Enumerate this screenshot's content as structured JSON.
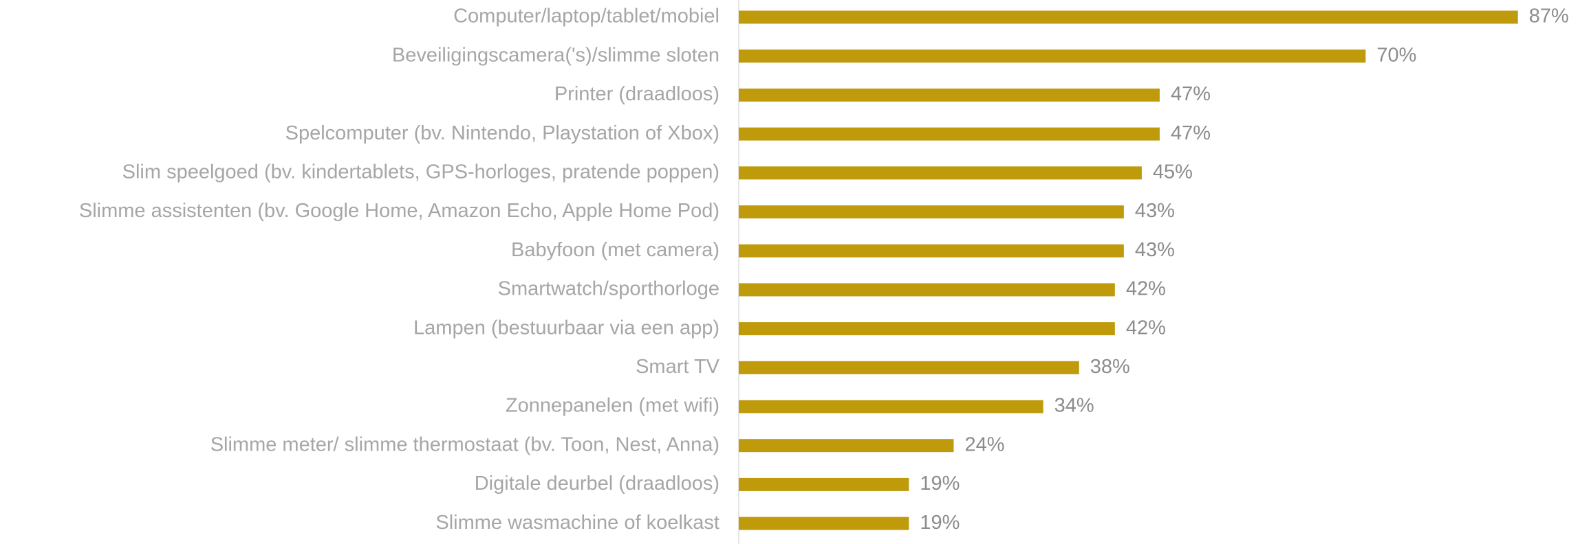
{
  "chart_data": {
    "type": "bar",
    "orientation": "horizontal",
    "color": "#bf9b0c",
    "categories": [
      "Computer/laptop/tablet/mobiel",
      "Beveiligingscamera('s)/slimme sloten",
      "Printer (draadloos)",
      "Spelcomputer (bv. Nintendo, Playstation of Xbox)",
      "Slim speelgoed (bv. kindertablets, GPS-horloges, pratende poppen)",
      "Slimme assistenten (bv. Google Home, Amazon Echo, Apple Home Pod)",
      "Babyfoon (met camera)",
      "Smartwatch/sporthorloge ",
      "Lampen (bestuurbaar via een app)",
      "Smart TV",
      "Zonnepanelen (met wifi)",
      "Slimme meter/ slimme thermostaat (bv. Toon, Nest, Anna)",
      "Digitale deurbel (draadloos)",
      "Slimme wasmachine of koelkast"
    ],
    "values": [
      87,
      70,
      47,
      47,
      45,
      43,
      43,
      42,
      42,
      38,
      34,
      24,
      19,
      19
    ],
    "value_labels": [
      "87%",
      "70%",
      "47%",
      "47%",
      "45%",
      "43%",
      "43%",
      "42%",
      "42%",
      "38%",
      "34%",
      "24%",
      "19%",
      "19%"
    ]
  }
}
